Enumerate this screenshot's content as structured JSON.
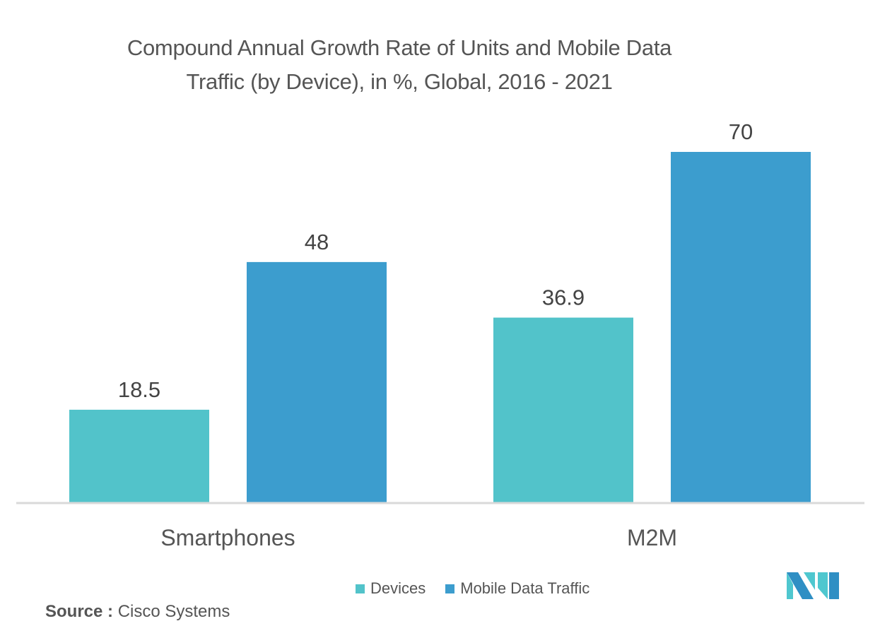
{
  "chart_data": {
    "type": "bar",
    "title": "Compound Annual Growth Rate of Units and Mobile Data Traffic (by Device), in %, Global, 2016 - 2021",
    "title_lines": [
      "Compound Annual Growth Rate of Units and Mobile Data",
      "Traffic (by Device), in %, Global, 2016 - 2021"
    ],
    "categories": [
      "Smartphones",
      "M2M"
    ],
    "series": [
      {
        "name": "Devices",
        "values": [
          18.5,
          36.9
        ],
        "labels": [
          "18.5",
          "36.9"
        ],
        "color": "#52c3ca"
      },
      {
        "name": "Mobile Data Traffic",
        "values": [
          48,
          70
        ],
        "labels": [
          "48",
          "70"
        ],
        "color": "#3c9dce"
      }
    ],
    "xlabel": "",
    "ylabel": "",
    "ylim": [
      0,
      70
    ],
    "grid": false,
    "y_axis_visible": false,
    "legend_position": "bottom-center"
  },
  "legend": {
    "items": [
      {
        "label": "Devices",
        "color": "#52c3ca"
      },
      {
        "label": "Mobile Data Traffic",
        "color": "#3c9dce"
      }
    ]
  },
  "source": {
    "prefix": "Source :",
    "text": "Cisco Systems"
  },
  "colors": {
    "axis": "#d9d9d9",
    "text": "#555555",
    "logo_dark": "#2f8fc4",
    "logo_light": "#4fc7cf"
  }
}
